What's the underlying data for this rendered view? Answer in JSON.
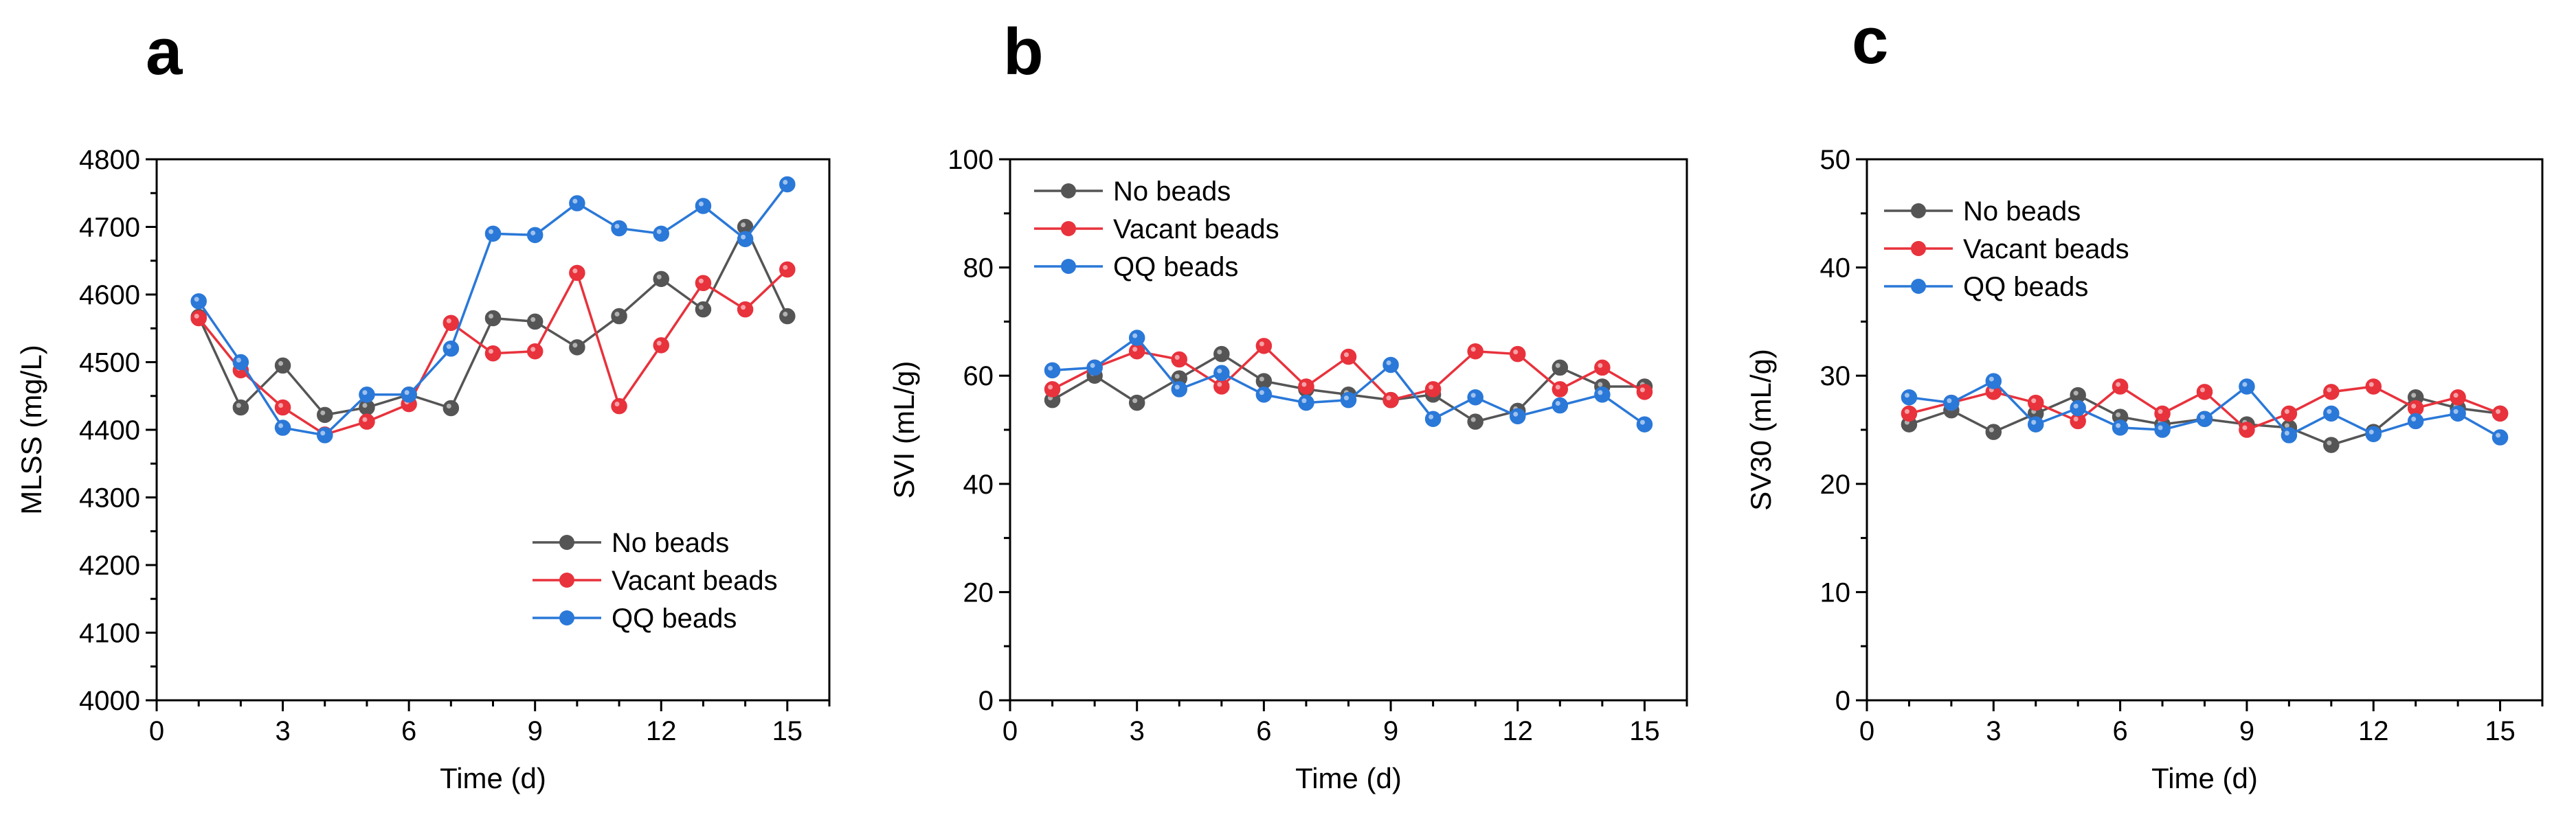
{
  "chart_data": [
    {
      "type": "line",
      "panel_label": "a",
      "xlabel": "Time (d)",
      "ylabel": "MLSS (mg/L)",
      "xlim": [
        0,
        16
      ],
      "ylim": [
        4000,
        4800
      ],
      "xticks": [
        0,
        3,
        6,
        9,
        12,
        15
      ],
      "yticks": [
        4000,
        4100,
        4200,
        4300,
        4400,
        4500,
        4600,
        4700,
        4800
      ],
      "legend_position": "bottom-right",
      "series": [
        {
          "name": "No beads",
          "color": "#555555",
          "x": [
            1,
            2,
            3,
            4,
            5,
            6,
            7,
            8,
            9,
            10,
            11,
            12,
            13,
            14,
            15
          ],
          "values": [
            4567,
            4433,
            4495,
            4422,
            4433,
            4452,
            4432,
            4565,
            4560,
            4522,
            4568,
            4623,
            4578,
            4700,
            4568
          ]
        },
        {
          "name": "Vacant beads",
          "color": "#e8323c",
          "x": [
            1,
            2,
            3,
            4,
            5,
            6,
            7,
            8,
            9,
            10,
            11,
            12,
            13,
            14,
            15
          ],
          "values": [
            4565,
            4488,
            4433,
            4393,
            4412,
            4438,
            4558,
            4513,
            4516,
            4632,
            4435,
            4525,
            4617,
            4578,
            4637
          ]
        },
        {
          "name": "QQ beads",
          "color": "#2a78d8",
          "x": [
            1,
            2,
            3,
            4,
            5,
            6,
            7,
            8,
            9,
            10,
            11,
            12,
            13,
            14,
            15
          ],
          "values": [
            4590,
            4500,
            4403,
            4392,
            4452,
            4452,
            4520,
            4690,
            4688,
            4735,
            4698,
            4690,
            4731,
            4682,
            4763
          ]
        }
      ]
    },
    {
      "type": "line",
      "panel_label": "b",
      "xlabel": "Time (d)",
      "ylabel": "SVI (mL/g)",
      "xlim": [
        0,
        16
      ],
      "ylim": [
        0,
        100
      ],
      "xticks": [
        0,
        3,
        6,
        9,
        12,
        15
      ],
      "yticks": [
        0,
        20,
        40,
        60,
        80,
        100
      ],
      "legend_position": "top-left",
      "series": [
        {
          "name": "No beads",
          "color": "#555555",
          "x": [
            1,
            2,
            3,
            4,
            5,
            6,
            7,
            8,
            9,
            10,
            11,
            12,
            13,
            14,
            15
          ],
          "values": [
            55.5,
            60.0,
            55.0,
            59.5,
            64.0,
            59.0,
            57.5,
            56.5,
            55.5,
            56.5,
            51.5,
            53.5,
            61.5,
            58.0,
            58.0
          ]
        },
        {
          "name": "Vacant beads",
          "color": "#e8323c",
          "x": [
            1,
            2,
            3,
            4,
            5,
            6,
            7,
            8,
            9,
            10,
            11,
            12,
            13,
            14,
            15
          ],
          "values": [
            57.5,
            61.5,
            64.5,
            63.0,
            58.0,
            65.5,
            58.0,
            63.5,
            55.5,
            57.5,
            64.5,
            64.0,
            57.5,
            61.5,
            57.0
          ]
        },
        {
          "name": "QQ beads",
          "color": "#2a78d8",
          "x": [
            1,
            2,
            3,
            4,
            5,
            6,
            7,
            8,
            9,
            10,
            11,
            12,
            13,
            14,
            15
          ],
          "values": [
            61.0,
            61.5,
            67.0,
            57.5,
            60.5,
            56.5,
            55.0,
            55.5,
            62.0,
            52.0,
            56.0,
            52.5,
            54.5,
            56.5,
            51.0
          ]
        }
      ]
    },
    {
      "type": "line",
      "panel_label": "c",
      "xlabel": "Time (d)",
      "ylabel": "SV30 (mL/g)",
      "xlim": [
        0,
        16
      ],
      "ylim": [
        0,
        50
      ],
      "xticks": [
        0,
        3,
        6,
        9,
        12,
        15
      ],
      "yticks": [
        0,
        10,
        20,
        30,
        40,
        50
      ],
      "legend_position": "top-left",
      "series": [
        {
          "name": "No beads",
          "color": "#555555",
          "x": [
            1,
            2,
            3,
            4,
            5,
            6,
            7,
            8,
            9,
            10,
            11,
            12,
            13,
            14,
            15
          ],
          "values": [
            25.5,
            26.8,
            24.8,
            26.5,
            28.2,
            26.2,
            25.5,
            26.0,
            25.5,
            25.2,
            23.6,
            24.8,
            28.0,
            27.0,
            26.5
          ]
        },
        {
          "name": "Vacant beads",
          "color": "#e8323c",
          "x": [
            1,
            2,
            3,
            4,
            5,
            6,
            7,
            8,
            9,
            10,
            11,
            12,
            13,
            14,
            15
          ],
          "values": [
            26.5,
            27.5,
            28.5,
            27.5,
            25.8,
            29.0,
            26.5,
            28.5,
            25.0,
            26.5,
            28.5,
            29.0,
            27.0,
            28.0,
            26.5
          ]
        },
        {
          "name": "QQ beads",
          "color": "#2a78d8",
          "x": [
            1,
            2,
            3,
            4,
            5,
            6,
            7,
            8,
            9,
            10,
            11,
            12,
            13,
            14,
            15
          ],
          "values": [
            28.0,
            27.5,
            29.5,
            25.5,
            27.0,
            25.2,
            25.0,
            26.0,
            29.0,
            24.5,
            26.5,
            24.6,
            25.8,
            26.5,
            24.3
          ]
        }
      ]
    }
  ]
}
